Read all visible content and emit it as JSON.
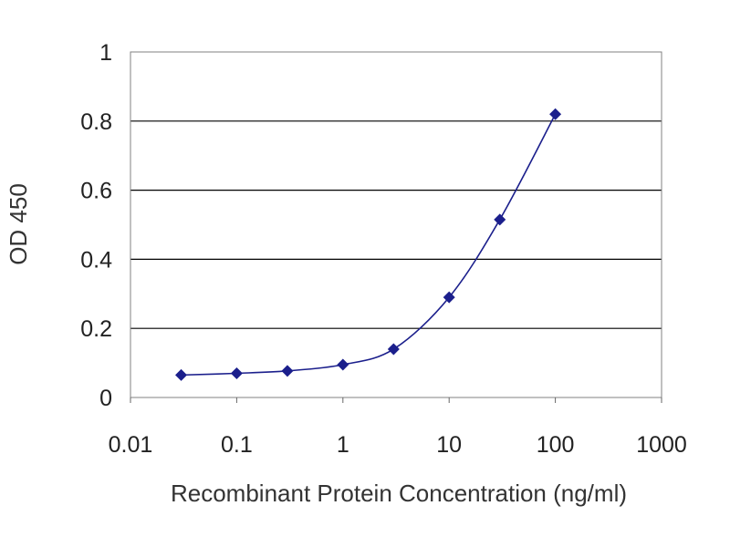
{
  "chart_data": {
    "type": "line",
    "title": "",
    "xlabel": "Recombinant Protein Concentration (ng/ml)",
    "ylabel": "OD 450",
    "x_scale": "log",
    "xlim": [
      0.01,
      1000
    ],
    "ylim": [
      0,
      1
    ],
    "x_ticks": [
      "0.01",
      "0.1",
      "1",
      "10",
      "100",
      "1000"
    ],
    "y_ticks": [
      "0",
      "0.2",
      "0.4",
      "0.6",
      "0.8",
      "1"
    ],
    "grid": "horizontal",
    "legend": "none",
    "series": [
      {
        "x": [
          0.03,
          0.1,
          0.3,
          1,
          3,
          10,
          30,
          100
        ],
        "y": [
          0.065,
          0.07,
          0.077,
          0.095,
          0.14,
          0.29,
          0.515,
          0.82
        ],
        "color": "#1b1f8c"
      }
    ]
  }
}
